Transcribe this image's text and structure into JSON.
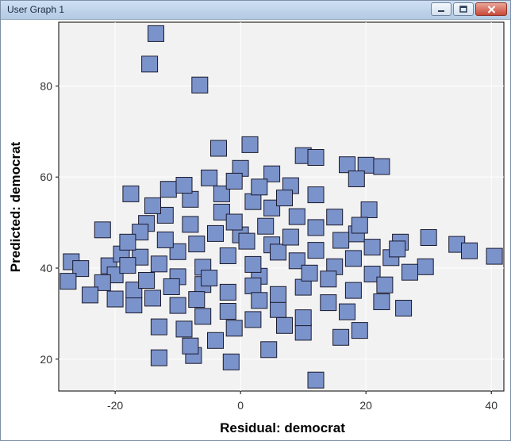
{
  "window": {
    "title": "User Graph 1",
    "buttons": {
      "minimize": "minimize-icon",
      "maximize": "maximize-icon",
      "close": "close-icon"
    }
  },
  "colors": {
    "marker_fill": "#7b93cb",
    "marker_stroke": "#1a1a2e",
    "plot_background": "#f2f2f2",
    "grid": "#ffffff"
  },
  "chart_data": {
    "type": "scatter",
    "xlabel": "Residual: democrat",
    "ylabel": "Predicted: democrat",
    "xlim": [
      -29,
      42
    ],
    "ylim": [
      13,
      94
    ],
    "xticks": [
      -20,
      0,
      20,
      40
    ],
    "yticks": [
      20,
      40,
      60,
      80
    ],
    "grid": true,
    "marker": "square",
    "points": [
      [
        -13.5,
        91.5
      ],
      [
        -14.5,
        84.8
      ],
      [
        -6.5,
        80.2
      ],
      [
        -3.5,
        66.3
      ],
      [
        1.5,
        67.1
      ],
      [
        10,
        64.7
      ],
      [
        12,
        64.3
      ],
      [
        17,
        62.7
      ],
      [
        20,
        62.6
      ],
      [
        22.5,
        62.3
      ],
      [
        18.5,
        59.6
      ],
      [
        -11.5,
        57.3
      ],
      [
        -17.5,
        56.3
      ],
      [
        12,
        56.1
      ],
      [
        20.5,
        52.8
      ],
      [
        15,
        51.2
      ],
      [
        -22,
        48.4
      ],
      [
        -15,
        49.8
      ],
      [
        18.5,
        47.5
      ],
      [
        25.5,
        45.7
      ],
      [
        30,
        46.7
      ],
      [
        34.5,
        45.2
      ],
      [
        36.5,
        43.8
      ],
      [
        40.5,
        42.6
      ],
      [
        -27,
        41.4
      ],
      [
        -25.5,
        39.9
      ],
      [
        -27.5,
        37.1
      ],
      [
        -21,
        40.5
      ],
      [
        29.5,
        40.3
      ],
      [
        26,
        31.2
      ],
      [
        22.5,
        32.6
      ],
      [
        -13,
        20.3
      ],
      [
        -1.5,
        19.4
      ],
      [
        -7.5,
        20.8
      ],
      [
        4.5,
        22.1
      ],
      [
        12,
        15.4
      ],
      [
        -8,
        22.9
      ],
      [
        -4,
        24.1
      ],
      [
        16,
        24.8
      ],
      [
        19,
        26.3
      ],
      [
        -13,
        27.1
      ],
      [
        -9,
        26.6
      ],
      [
        7,
        27.4
      ],
      [
        10,
        25.9
      ],
      [
        -17,
        31.9
      ],
      [
        -6,
        36.4
      ],
      [
        3,
        38.2
      ],
      [
        -10,
        43.6
      ],
      [
        5,
        45.1
      ],
      [
        0,
        47.3
      ],
      [
        -3,
        52.3
      ],
      [
        2,
        54.6
      ],
      [
        -5,
        59.8
      ],
      [
        0,
        61.9
      ],
      [
        5,
        60.7
      ],
      [
        8,
        58.1
      ],
      [
        -8,
        55.1
      ],
      [
        -12,
        51.6
      ],
      [
        -16,
        47.9
      ],
      [
        -19,
        43.1
      ],
      [
        -20,
        38.5
      ],
      [
        -17,
        35.2
      ],
      [
        -14,
        33.4
      ],
      [
        -10,
        31.8
      ],
      [
        -6,
        29.4
      ],
      [
        -2,
        30.5
      ],
      [
        2,
        28.7
      ],
      [
        6,
        30.9
      ],
      [
        10,
        29.1
      ],
      [
        14,
        32.4
      ],
      [
        18,
        35.1
      ],
      [
        21,
        38.7
      ],
      [
        24,
        42.3
      ],
      [
        21,
        44.6
      ],
      [
        16,
        46.1
      ],
      [
        12,
        48.9
      ],
      [
        9,
        51.3
      ],
      [
        5,
        53.2
      ],
      [
        -1,
        50.1
      ],
      [
        -4,
        47.6
      ],
      [
        -7,
        45.3
      ],
      [
        -10,
        38.1
      ],
      [
        -13,
        40.9
      ],
      [
        -16,
        42.4
      ],
      [
        -6,
        40.2
      ],
      [
        -2,
        42.7
      ],
      [
        2,
        40.8
      ],
      [
        6,
        43.5
      ],
      [
        9,
        41.6
      ],
      [
        12,
        43.9
      ],
      [
        15,
        40.3
      ],
      [
        18,
        42.1
      ],
      [
        14,
        37.6
      ],
      [
        10,
        35.8
      ],
      [
        6,
        34.2
      ],
      [
        2,
        36.1
      ],
      [
        -2,
        34.7
      ],
      [
        -7,
        33.1
      ],
      [
        -11,
        35.9
      ],
      [
        -15,
        37.3
      ],
      [
        -18,
        40.6
      ],
      [
        -22,
        36.8
      ],
      [
        -24,
        34.1
      ],
      [
        -20,
        33.2
      ],
      [
        -8,
        49.6
      ],
      [
        -12,
        46.2
      ],
      [
        -3,
        56.3
      ],
      [
        3,
        57.8
      ],
      [
        7,
        55.4
      ],
      [
        -1,
        59.1
      ],
      [
        4,
        49.2
      ],
      [
        8,
        46.8
      ],
      [
        11,
        38.9
      ],
      [
        1,
        45.9
      ],
      [
        -5,
        37.8
      ],
      [
        17,
        30.4
      ],
      [
        23,
        36.3
      ],
      [
        27,
        39.1
      ],
      [
        25,
        44.2
      ],
      [
        19,
        49.4
      ],
      [
        -9,
        58.2
      ],
      [
        -14,
        53.7
      ],
      [
        -18,
        45.7
      ],
      [
        3,
        32.9
      ],
      [
        -1,
        26.8
      ]
    ]
  }
}
